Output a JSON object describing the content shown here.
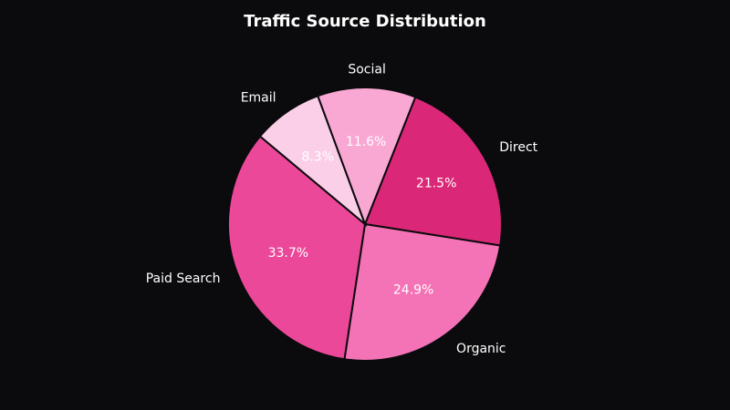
{
  "chart_data": {
    "type": "pie",
    "title": "Traffic Source Distribution",
    "categories": [
      "Direct",
      "Organic",
      "Paid Search",
      "Email",
      "Social"
    ],
    "values": [
      21.5,
      24.9,
      33.7,
      8.3,
      11.6
    ],
    "value_labels": [
      "21.5%",
      "24.9%",
      "33.7%",
      "8.3%",
      "11.6%"
    ],
    "colors": [
      "#db2777",
      "#f472b6",
      "#ec4899",
      "#fbcfe8",
      "#f9a8d4"
    ]
  }
}
